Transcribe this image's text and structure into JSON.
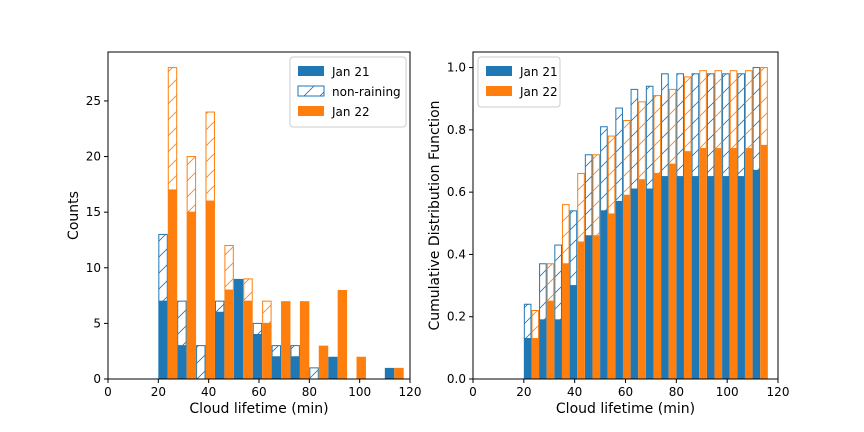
{
  "colors": {
    "jan21": "#1f77b4",
    "jan22": "#ff7f0e",
    "axis": "#000000",
    "legend_border": "#cccccc",
    "background": "#ffffff"
  },
  "chart_data": [
    {
      "type": "bar",
      "subtype": "stacked histogram with hatched non-raining portion",
      "xlabel": "Cloud lifetime (min)",
      "ylabel": "Counts",
      "xlim": [
        0,
        120
      ],
      "ylim": [
        0,
        29.4
      ],
      "xticks": [
        0,
        20,
        40,
        60,
        80,
        100,
        120
      ],
      "yticks": [
        0,
        5,
        10,
        15,
        20,
        25
      ],
      "bin_width": 7.5,
      "legend": {
        "placement": "upper right",
        "entries": [
          {
            "label": "Jan 21",
            "style": "solid",
            "series": "jan21"
          },
          {
            "label": "non-raining",
            "style": "hatch",
            "series": "jan21"
          },
          {
            "label": "Jan 22",
            "style": "solid",
            "series": "jan22"
          }
        ]
      },
      "series": [
        {
          "name": "Jan 21",
          "key": "jan21",
          "bins": [
            20,
            27.5,
            35,
            42.5,
            50,
            57.5,
            65,
            72.5,
            80,
            87.5,
            95,
            102.5,
            110
          ],
          "raining": [
            7,
            3,
            0,
            6,
            9,
            4,
            2,
            2,
            0,
            2,
            0,
            0,
            1
          ],
          "non_raining": [
            6,
            4,
            3,
            1,
            0,
            1,
            1,
            1,
            1,
            0,
            0,
            0,
            0
          ]
        },
        {
          "name": "Jan 22",
          "key": "jan22",
          "bins": [
            20,
            27.5,
            35,
            42.5,
            50,
            57.5,
            65,
            72.5,
            80,
            87.5,
            95,
            102.5,
            110
          ],
          "raining": [
            17,
            15,
            16,
            8,
            7,
            5,
            7,
            7,
            3,
            8,
            2,
            0,
            1
          ],
          "non_raining": [
            11,
            5,
            8,
            4,
            2,
            2,
            0,
            0,
            0,
            0,
            0,
            0,
            0
          ]
        }
      ]
    },
    {
      "type": "bar",
      "subtype": "cumulative distribution with hatched non-raining portion",
      "xlabel": "Cloud lifetime (min)",
      "ylabel": "Cumulative Distribution Function",
      "xlim": [
        0,
        120
      ],
      "ylim": [
        0,
        1.05
      ],
      "xticks": [
        0,
        20,
        40,
        60,
        80,
        100,
        120
      ],
      "yticks": [
        0.0,
        0.2,
        0.4,
        0.6,
        0.8,
        1.0
      ],
      "bin_width": 6.0,
      "legend": {
        "placement": "upper left",
        "entries": [
          {
            "label": "Jan 21",
            "style": "solid",
            "series": "jan21"
          },
          {
            "label": "Jan 22",
            "style": "solid",
            "series": "jan22"
          }
        ]
      },
      "series": [
        {
          "name": "Jan 21",
          "key": "jan21",
          "bins": [
            20,
            26,
            32,
            38,
            44,
            50,
            56,
            62,
            68,
            74,
            80,
            86,
            92,
            98,
            104,
            110
          ],
          "raining": [
            0.13,
            0.19,
            0.19,
            0.3,
            0.46,
            0.54,
            0.57,
            0.61,
            0.61,
            0.65,
            0.65,
            0.65,
            0.65,
            0.65,
            0.65,
            0.67
          ],
          "total": [
            0.24,
            0.37,
            0.43,
            0.54,
            0.72,
            0.81,
            0.87,
            0.93,
            0.94,
            0.98,
            0.98,
            0.98,
            0.98,
            0.98,
            0.98,
            1.0
          ]
        },
        {
          "name": "Jan 22",
          "key": "jan22",
          "bins": [
            20,
            26,
            32,
            38,
            44,
            50,
            56,
            62,
            68,
            74,
            80,
            86,
            92,
            98,
            104,
            110
          ],
          "raining": [
            0.13,
            0.25,
            0.37,
            0.44,
            0.46,
            0.53,
            0.59,
            0.64,
            0.66,
            0.69,
            0.73,
            0.74,
            0.74,
            0.74,
            0.74,
            0.75
          ],
          "total": [
            0.22,
            0.37,
            0.56,
            0.66,
            0.72,
            0.78,
            0.83,
            0.89,
            0.91,
            0.93,
            0.97,
            0.99,
            0.99,
            0.99,
            0.99,
            1.0
          ]
        }
      ]
    }
  ]
}
